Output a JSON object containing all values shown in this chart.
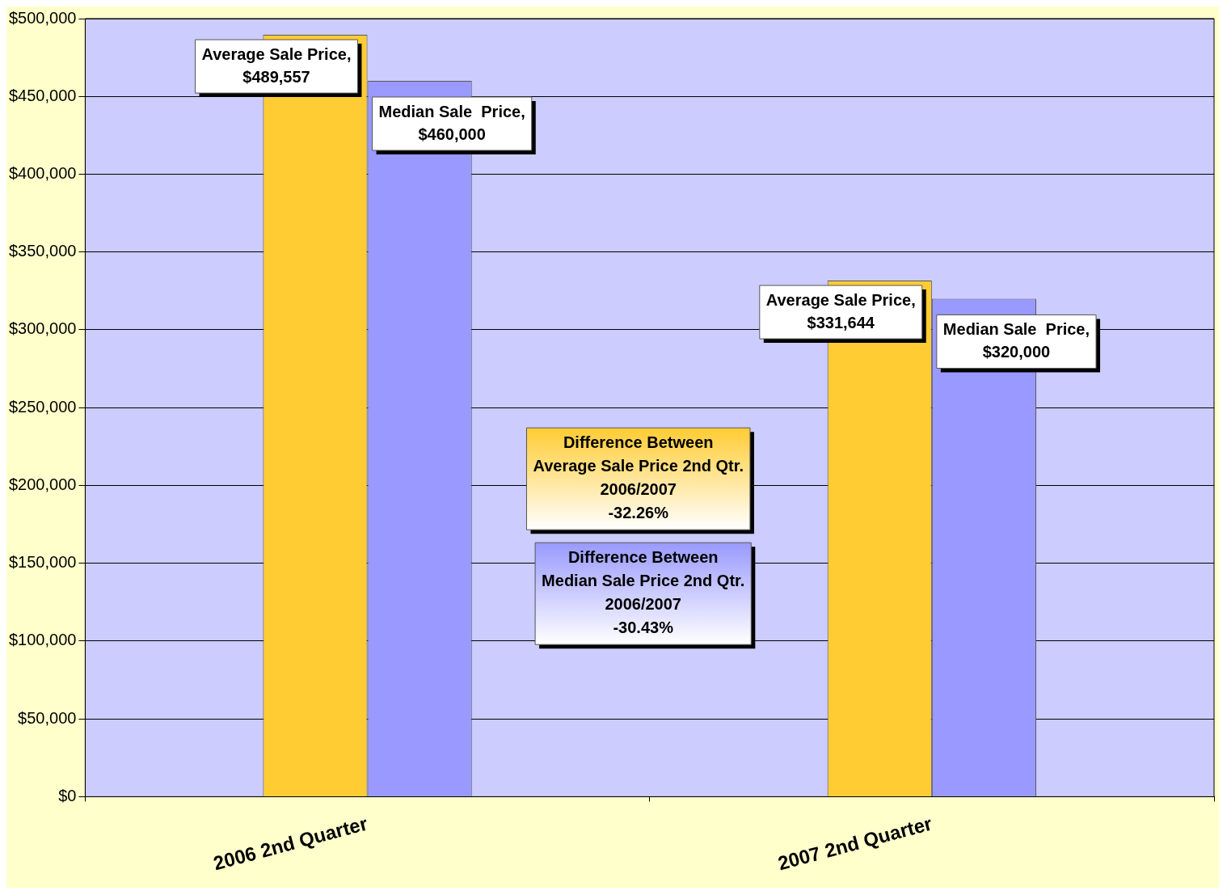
{
  "chart_data": {
    "type": "bar",
    "categories": [
      "2006 2nd Quarter",
      "2007 2nd Quarter"
    ],
    "series": [
      {
        "color": "#ffcc33",
        "values": [
          489557,
          331644
        ],
        "value_labels": [
          "Average Sale Price,\n$489,557",
          "Average Sale Price,\n$331,644"
        ]
      },
      {
        "color": "#9999ff",
        "values": [
          460000,
          320000
        ],
        "value_labels": [
          "Median Sale  Price,\n$460,000",
          "Median Sale  Price,\n$320,000"
        ]
      }
    ],
    "ylim": [
      0,
      500000
    ],
    "yticks": [
      {
        "value": 0,
        "label": "$0"
      },
      {
        "value": 50000,
        "label": "$50,000"
      },
      {
        "value": 100000,
        "label": "$100,000"
      },
      {
        "value": 150000,
        "label": "$150,000"
      },
      {
        "value": 200000,
        "label": "$200,000"
      },
      {
        "value": 250000,
        "label": "$250,000"
      },
      {
        "value": 300000,
        "label": "$300,000"
      },
      {
        "value": 350000,
        "label": "$350,000"
      },
      {
        "value": 400000,
        "label": "$400,000"
      },
      {
        "value": 450000,
        "label": "$450,000"
      },
      {
        "value": 500000,
        "label": "$500,000"
      }
    ],
    "grid": "y",
    "legend": false,
    "annotations": [
      "Difference Between\nAverage Sale Price 2nd Qtr.\n2006/2007\n-32.26%",
      "Difference Between\nMedian Sale Price 2nd Qtr.\n2006/2007\n-30.43%"
    ]
  }
}
